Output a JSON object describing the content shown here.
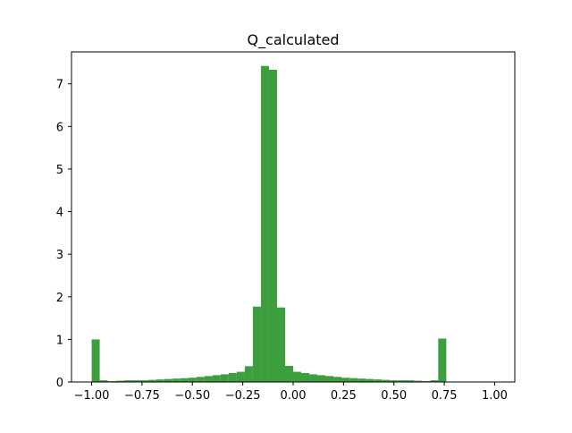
{
  "chart_data": {
    "type": "bar",
    "title": "Q_calculated",
    "xlabel": "",
    "ylabel": "",
    "xlim": [
      -1.1,
      1.1
    ],
    "ylim": [
      0,
      7.75
    ],
    "xticks": [
      -1.0,
      -0.75,
      -0.5,
      -0.25,
      0.0,
      0.25,
      0.5,
      0.75,
      1.0
    ],
    "xtick_labels": [
      "−1.00",
      "−0.75",
      "−0.50",
      "−0.25",
      "0.00",
      "0.25",
      "0.50",
      "0.75",
      "1.00"
    ],
    "yticks": [
      0,
      1,
      2,
      3,
      4,
      5,
      6,
      7
    ],
    "ytick_labels": [
      "0",
      "1",
      "2",
      "3",
      "4",
      "5",
      "6",
      "7"
    ],
    "bin_edges_start": -1.0,
    "bin_width": 0.04,
    "values": [
      1.0,
      0.04,
      0.02,
      0.03,
      0.04,
      0.04,
      0.04,
      0.05,
      0.06,
      0.07,
      0.08,
      0.09,
      0.1,
      0.12,
      0.14,
      0.16,
      0.18,
      0.21,
      0.24,
      0.37,
      1.77,
      7.42,
      7.33,
      1.75,
      0.38,
      0.24,
      0.21,
      0.18,
      0.16,
      0.14,
      0.12,
      0.1,
      0.09,
      0.08,
      0.07,
      0.06,
      0.05,
      0.04,
      0.04,
      0.04,
      0.03,
      0.02,
      0.04,
      1.02
    ],
    "color": "#3d9e3d",
    "grid": false
  }
}
